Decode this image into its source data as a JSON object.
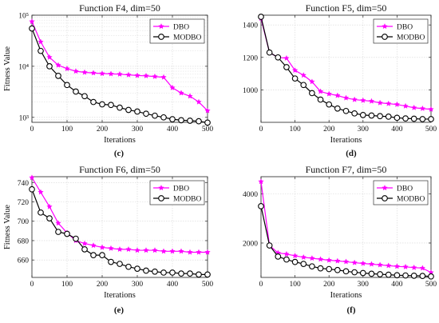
{
  "chart_data": [
    {
      "id": "c",
      "panel_label": "(c)",
      "type": "line",
      "title": "Function F4, dim=50",
      "xlabel": "Iterations",
      "ylabel": "Fitness Value",
      "xlim": [
        0,
        500
      ],
      "yscale": "log",
      "ylim": [
        800,
        100000
      ],
      "x_ticks": [
        0,
        100,
        200,
        300,
        400,
        500
      ],
      "y_ticks": [
        1000,
        10000,
        100000
      ],
      "y_tick_labels": [
        "10³",
        "10⁴",
        "10⁵"
      ],
      "grid": true,
      "legend_position": "top-right",
      "x": [
        0,
        25,
        50,
        75,
        100,
        125,
        150,
        175,
        200,
        225,
        250,
        275,
        300,
        325,
        350,
        375,
        400,
        425,
        450,
        475,
        500
      ],
      "series": [
        {
          "name": "DBO",
          "color": "#ff00ff",
          "marker": "star",
          "values": [
            75000,
            30000,
            15000,
            10500,
            9000,
            8000,
            7600,
            7400,
            7200,
            7100,
            7000,
            6800,
            6600,
            6500,
            6300,
            6100,
            3800,
            3000,
            2600,
            2000,
            1350
          ]
        },
        {
          "name": "MODBO",
          "color": "#000000",
          "marker": "circle",
          "values": [
            55000,
            20000,
            10000,
            6500,
            4300,
            3200,
            2600,
            2000,
            1800,
            1750,
            1550,
            1400,
            1300,
            1180,
            1080,
            1000,
            920,
            880,
            860,
            840,
            790
          ]
        }
      ]
    },
    {
      "id": "d",
      "panel_label": "(d)",
      "type": "line",
      "title": "Function F5, dim=50",
      "xlabel": "Iterations",
      "ylabel": "",
      "xlim": [
        0,
        500
      ],
      "ylim": [
        800,
        1460
      ],
      "x_ticks": [
        0,
        100,
        200,
        300,
        400,
        500
      ],
      "y_ticks": [
        1000,
        1200,
        1400
      ],
      "y_tick_labels": [
        "1000",
        "1200",
        "1400"
      ],
      "grid": true,
      "legend_position": "top-right",
      "x": [
        0,
        25,
        50,
        75,
        100,
        125,
        150,
        175,
        200,
        225,
        250,
        275,
        300,
        325,
        350,
        375,
        400,
        425,
        450,
        475,
        500
      ],
      "series": [
        {
          "name": "DBO",
          "color": "#ff00ff",
          "marker": "star",
          "values": [
            1440,
            1230,
            1200,
            1195,
            1120,
            1090,
            1050,
            990,
            975,
            965,
            950,
            940,
            935,
            930,
            920,
            915,
            910,
            900,
            890,
            885,
            880
          ]
        },
        {
          "name": "MODBO",
          "color": "#000000",
          "marker": "circle",
          "values": [
            1450,
            1230,
            1200,
            1140,
            1070,
            1030,
            980,
            940,
            910,
            885,
            870,
            855,
            845,
            842,
            838,
            835,
            828,
            824,
            822,
            820,
            820
          ]
        }
      ]
    },
    {
      "id": "e",
      "panel_label": "(e)",
      "type": "line",
      "title": "Function F6, dim=50",
      "xlabel": "Iterations",
      "ylabel": "Fitness Value",
      "xlim": [
        0,
        500
      ],
      "ylim": [
        642,
        746
      ],
      "x_ticks": [
        0,
        100,
        200,
        300,
        400,
        500
      ],
      "y_ticks": [
        660,
        680,
        700,
        720,
        740
      ],
      "y_tick_labels": [
        "660",
        "680",
        "700",
        "720",
        "740"
      ],
      "grid": true,
      "legend_position": "top-right",
      "x": [
        0,
        25,
        50,
        75,
        100,
        125,
        150,
        175,
        200,
        225,
        250,
        275,
        300,
        325,
        350,
        375,
        400,
        425,
        450,
        475,
        500
      ],
      "series": [
        {
          "name": "DBO",
          "color": "#ff00ff",
          "marker": "star",
          "values": [
            745,
            730,
            715,
            698,
            688,
            680,
            677,
            675,
            673,
            672,
            671,
            671,
            670,
            670,
            670,
            669,
            669,
            669,
            668,
            668,
            668
          ]
        },
        {
          "name": "MODBO",
          "color": "#000000",
          "marker": "circle",
          "values": [
            733,
            709,
            703,
            689,
            687,
            682,
            671,
            665,
            665,
            658,
            656,
            653,
            651,
            649,
            648,
            647,
            647,
            646,
            646,
            645,
            645
          ]
        }
      ]
    },
    {
      "id": "f",
      "panel_label": "(f)",
      "type": "line",
      "title": "Function F7, dim=50",
      "xlabel": "Iterations",
      "ylabel": "",
      "xlim": [
        0,
        500
      ],
      "ylim": [
        600,
        4700
      ],
      "x_ticks": [
        0,
        100,
        200,
        300,
        400,
        500
      ],
      "y_ticks": [
        2000,
        4000
      ],
      "y_tick_labels": [
        "2000",
        "4000"
      ],
      "grid": true,
      "legend_position": "top-right",
      "x": [
        0,
        25,
        50,
        75,
        100,
        125,
        150,
        175,
        200,
        225,
        250,
        275,
        300,
        325,
        350,
        375,
        400,
        425,
        450,
        475,
        500
      ],
      "series": [
        {
          "name": "DBO",
          "color": "#ff00ff",
          "marker": "star",
          "values": [
            4500,
            1900,
            1600,
            1550,
            1480,
            1420,
            1380,
            1340,
            1300,
            1270,
            1240,
            1200,
            1170,
            1140,
            1110,
            1080,
            1050,
            1030,
            1000,
            980,
            800
          ]
        },
        {
          "name": "MODBO",
          "color": "#000000",
          "marker": "circle",
          "values": [
            3500,
            1900,
            1450,
            1330,
            1230,
            1150,
            1050,
            970,
            940,
            900,
            850,
            810,
            780,
            750,
            730,
            710,
            690,
            680,
            670,
            660,
            640
          ]
        }
      ]
    }
  ]
}
